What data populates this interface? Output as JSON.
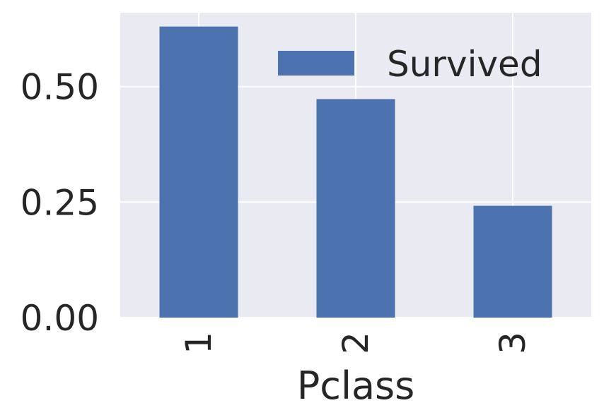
{
  "chart_data": {
    "type": "bar",
    "categories": [
      "1",
      "2",
      "3"
    ],
    "series": [
      {
        "name": "Survived",
        "values": [
          0.63,
          0.473,
          0.242
        ],
        "color": "#4c72b0"
      }
    ],
    "xlabel": "Pclass",
    "ylabel": "",
    "ylim": [
      0,
      0.66
    ],
    "yticks": [
      0.0,
      0.25,
      0.5
    ],
    "ytick_labels": [
      "0.00",
      "0.25",
      "0.50"
    ],
    "grid": true,
    "legend_position": "top-right",
    "background_color": "#eaeaf2",
    "grid_color": "#ffffff"
  }
}
